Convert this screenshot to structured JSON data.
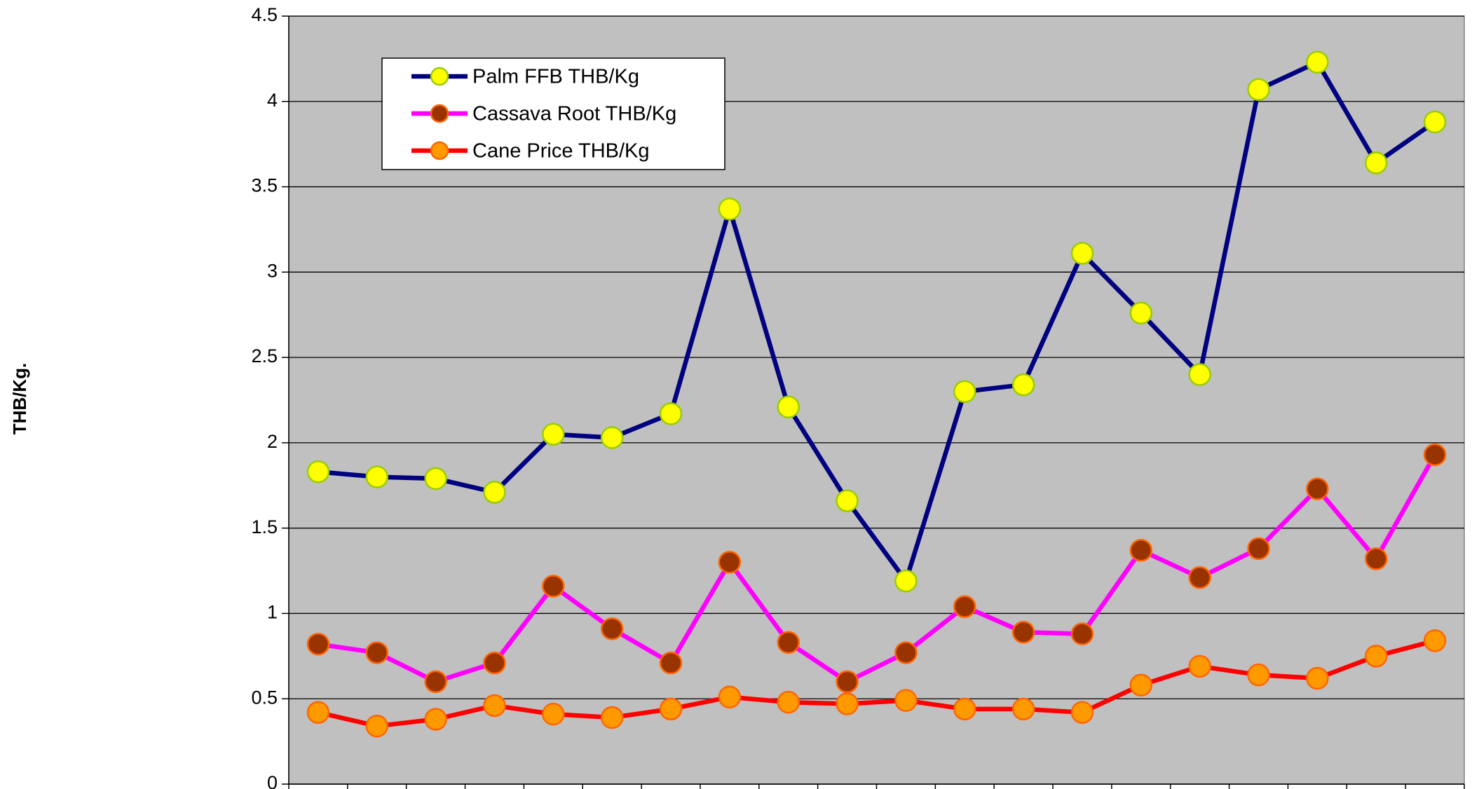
{
  "chart_data": {
    "type": "line",
    "ylabel": "THB/Kg.",
    "categories": [
      null,
      null,
      null,
      null,
      null,
      null,
      null,
      null,
      null,
      null,
      null,
      null,
      null,
      null,
      null,
      null,
      null,
      null,
      null,
      null
    ],
    "series": [
      {
        "name": "Palm FFB THB/Kg",
        "color": "#000080",
        "marker_color": "#ffff00",
        "marker_edge": "#99cc00",
        "values": [
          1.83,
          1.8,
          1.79,
          1.71,
          2.05,
          2.03,
          2.17,
          3.37,
          2.21,
          1.66,
          1.19,
          2.3,
          2.34,
          3.11,
          2.76,
          2.4,
          4.07,
          4.23,
          3.64,
          3.88
        ]
      },
      {
        "name": "Cassava Root THB/Kg",
        "color": "#ff00ff",
        "marker_color": "#993300",
        "marker_edge": "#ff6600",
        "values": [
          0.82,
          0.77,
          0.6,
          0.71,
          1.16,
          0.91,
          0.71,
          1.3,
          0.83,
          0.6,
          0.77,
          1.04,
          0.89,
          0.88,
          1.37,
          1.21,
          1.38,
          1.73,
          1.32,
          1.93
        ]
      },
      {
        "name": "Cane Price THB/Kg",
        "color": "#ff0000",
        "marker_color": "#ff9900",
        "marker_edge": "#ff6600",
        "values": [
          0.42,
          0.34,
          0.38,
          0.46,
          0.41,
          0.39,
          0.44,
          0.51,
          0.48,
          0.47,
          0.49,
          0.44,
          0.44,
          0.42,
          0.58,
          0.69,
          0.64,
          0.62,
          0.75,
          0.84
        ]
      }
    ],
    "ylim": [
      0,
      4.5
    ],
    "yticks": [
      0,
      0.5,
      1,
      1.5,
      2,
      2.5,
      3,
      3.5,
      4,
      4.5
    ],
    "grid": true,
    "legend": "top-left",
    "plot_background": "#c0c0c0"
  }
}
